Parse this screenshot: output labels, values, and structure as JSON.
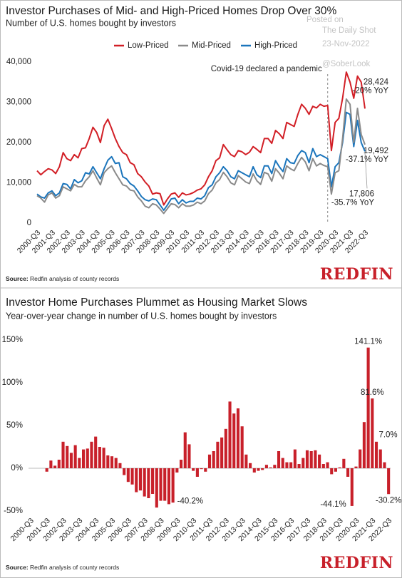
{
  "watermark": {
    "line1": "Posted on",
    "line2": "The Daily Shot",
    "line3": "23-Nov-2022",
    "line4": "@SoberLook"
  },
  "chart_data": [
    {
      "type": "line",
      "title": "Investor Purchases of Mid- and High-Priced Homes Drop Over 30%",
      "subtitle": "Number of U.S. homes bought by investors",
      "source_label": "Source:",
      "source": "Redfin analysis of county records",
      "logo": "REDFIN",
      "categories": [
        "2000-Q3",
        null,
        null,
        null,
        "2001-Q3",
        null,
        null,
        null,
        "2002-Q3",
        null,
        null,
        null,
        "2003-Q3",
        null,
        null,
        null,
        "2004-Q3",
        null,
        null,
        null,
        "2005-Q3",
        null,
        null,
        null,
        "2006-Q3",
        null,
        null,
        null,
        "2007-Q3",
        null,
        null,
        null,
        "2008-Q3",
        null,
        null,
        null,
        "2009-Q3",
        null,
        null,
        null,
        "2010-Q3",
        null,
        null,
        null,
        "2011-Q3",
        null,
        null,
        null,
        "2012-Q3",
        null,
        null,
        null,
        "2013-Q3",
        null,
        null,
        null,
        "2014-Q3",
        null,
        null,
        null,
        "2015-Q3",
        null,
        null,
        null,
        "2016-Q3",
        null,
        null,
        null,
        "2017-Q3",
        null,
        null,
        null,
        "2018-Q3",
        null,
        null,
        null,
        "2019-Q3",
        null,
        null,
        null,
        "2020-Q3",
        null,
        null,
        null,
        "2021-Q3",
        null,
        null,
        null,
        "2022-Q3"
      ],
      "series": [
        {
          "name": "Low-Priced",
          "color": "#d21f26",
          "values": [
            13000,
            12000,
            12800,
            13500,
            13200,
            12300,
            14000,
            17500,
            16000,
            15500,
            17000,
            16200,
            18500,
            18700,
            21000,
            23800,
            22500,
            20000,
            24200,
            25800,
            23500,
            21000,
            19000,
            17500,
            17000,
            15000,
            14500,
            12300,
            11500,
            10200,
            9200,
            7200,
            7500,
            7300,
            4500,
            6000,
            7200,
            7500,
            6400,
            7500,
            7000,
            7200,
            7600,
            8200,
            8500,
            9500,
            11500,
            13000,
            15500,
            16200,
            19500,
            18200,
            17000,
            16500,
            18000,
            17700,
            17000,
            17600,
            19000,
            18300,
            17500,
            21000,
            21000,
            19800,
            23000,
            22200,
            21000,
            25000,
            24500,
            24000,
            27000,
            29500,
            28500,
            27000,
            29000,
            28600,
            29500,
            29000,
            29200,
            18000,
            25000,
            26000,
            31000,
            37500,
            35000,
            31000,
            36500,
            35000,
            28424
          ],
          "value_labels": [
            null,
            null,
            null,
            null,
            null,
            null,
            null,
            null,
            null,
            null,
            null,
            null,
            null,
            null,
            null,
            null,
            null,
            null,
            null,
            null,
            null,
            null,
            null,
            null,
            null,
            null,
            null,
            null,
            null,
            null,
            null,
            null,
            null,
            null,
            null,
            null,
            null,
            null,
            null,
            null,
            null,
            null,
            null,
            null,
            null,
            null,
            null,
            null,
            null,
            null,
            null,
            null,
            null,
            null,
            null,
            null,
            null,
            null,
            null,
            null,
            null,
            null,
            null,
            null,
            null,
            null,
            null,
            null,
            null,
            null,
            null,
            null,
            null,
            null,
            null,
            null,
            null,
            null,
            null,
            null,
            null,
            null,
            null,
            null,
            null,
            null,
            null,
            null,
            "28,424"
          ],
          "note": "-20% YoY"
        },
        {
          "name": "Mid-Priced",
          "color": "#8a8a8a",
          "values": [
            6800,
            6200,
            5200,
            7000,
            7500,
            6200,
            6800,
            9000,
            8500,
            8000,
            9600,
            9000,
            9000,
            10500,
            11500,
            13000,
            11200,
            9500,
            12500,
            13500,
            14200,
            12500,
            11000,
            9500,
            9200,
            8200,
            8000,
            6500,
            5500,
            4200,
            3800,
            4800,
            4500,
            3500,
            2400,
            3600,
            4800,
            4600,
            3800,
            4800,
            4200,
            4200,
            4500,
            5200,
            4800,
            5500,
            7300,
            8200,
            10000,
            10800,
            12600,
            11500,
            10000,
            9500,
            11800,
            11000,
            10200,
            9800,
            12200,
            10500,
            9600,
            12600,
            12200,
            10400,
            13500,
            12400,
            11000,
            14200,
            13500,
            13000,
            14800,
            16300,
            15200,
            13000,
            16000,
            14200,
            14800,
            14300,
            14000,
            7200,
            12500,
            13000,
            21000,
            30800,
            29500,
            20000,
            28500,
            22000,
            19492
          ],
          "value_labels": [
            null,
            null,
            null,
            null,
            null,
            null,
            null,
            null,
            null,
            null,
            null,
            null,
            null,
            null,
            null,
            null,
            null,
            null,
            null,
            null,
            null,
            null,
            null,
            null,
            null,
            null,
            null,
            null,
            null,
            null,
            null,
            null,
            null,
            null,
            null,
            null,
            null,
            null,
            null,
            null,
            null,
            null,
            null,
            null,
            null,
            null,
            null,
            null,
            null,
            null,
            null,
            null,
            null,
            null,
            null,
            null,
            null,
            null,
            null,
            null,
            null,
            null,
            null,
            null,
            null,
            null,
            null,
            null,
            null,
            null,
            null,
            null,
            null,
            null,
            null,
            null,
            null,
            null,
            null,
            null,
            null,
            null,
            null,
            null,
            null,
            null,
            null,
            null,
            "19,492"
          ],
          "note": "-37.1% YoY"
        },
        {
          "name": "High-Priced",
          "color": "#1b75bc",
          "values": [
            7200,
            6500,
            6200,
            7500,
            8000,
            6800,
            7500,
            9800,
            9600,
            8500,
            10800,
            10000,
            10500,
            12500,
            12200,
            14000,
            12500,
            11000,
            13500,
            15600,
            16500,
            14800,
            15000,
            11500,
            11000,
            9800,
            9200,
            8000,
            6600,
            5800,
            5500,
            6000,
            5800,
            4500,
            3200,
            4500,
            6000,
            6200,
            4800,
            5800,
            5000,
            5400,
            5400,
            6200,
            6000,
            6800,
            8800,
            9500,
            11500,
            12500,
            14000,
            13000,
            11500,
            11000,
            13000,
            12500,
            12000,
            11500,
            14000,
            12000,
            11300,
            14200,
            14200,
            12300,
            15500,
            14000,
            12800,
            16000,
            15000,
            14800,
            16800,
            18000,
            17500,
            15000,
            18500,
            16500,
            17000,
            16500,
            16000,
            9000,
            14000,
            15000,
            20000,
            27500,
            27000,
            19000,
            25500,
            20000,
            17806
          ],
          "value_labels": [
            null,
            null,
            null,
            null,
            null,
            null,
            null,
            null,
            null,
            null,
            null,
            null,
            null,
            null,
            null,
            null,
            null,
            null,
            null,
            null,
            null,
            null,
            null,
            null,
            null,
            null,
            null,
            null,
            null,
            null,
            null,
            null,
            null,
            null,
            null,
            null,
            null,
            null,
            null,
            null,
            null,
            null,
            null,
            null,
            null,
            null,
            null,
            null,
            null,
            null,
            null,
            null,
            null,
            null,
            null,
            null,
            null,
            null,
            null,
            null,
            null,
            null,
            null,
            null,
            null,
            null,
            null,
            null,
            null,
            null,
            null,
            null,
            null,
            null,
            null,
            null,
            null,
            null,
            null,
            null,
            null,
            null,
            null,
            null,
            null,
            null,
            null,
            null,
            "17,806"
          ],
          "note": "-35.7% YoY"
        }
      ],
      "annotation": {
        "text": "Covid-19 declared a pandemic",
        "category_index": 78
      },
      "ylim": [
        0,
        40000
      ],
      "yticks": [
        0,
        {
          "value": 10000,
          "label": "10,000"
        },
        {
          "value": 20000,
          "label": "20,000"
        },
        {
          "value": 30000,
          "label": "30,000"
        },
        {
          "value": 40000,
          "label": "40,000"
        }
      ],
      "legend": "top"
    },
    {
      "type": "bar",
      "title": "Investor Home Purchases Plummet as Housing Market Slows",
      "subtitle": "Year-over-year change in number of U.S. homes bought by investors",
      "source_label": "Source:",
      "source": "Redfin analysis of county records",
      "logo": "REDFIN",
      "categories": [
        "2000-Q3",
        null,
        null,
        null,
        "2001-Q3",
        null,
        null,
        null,
        "2002-Q3",
        null,
        null,
        null,
        "2003-Q3",
        null,
        null,
        null,
        "2004-Q3",
        null,
        null,
        null,
        "2005-Q3",
        null,
        null,
        null,
        "2006-Q3",
        null,
        null,
        null,
        "2007-Q3",
        null,
        null,
        null,
        "2008-Q3",
        null,
        null,
        null,
        "2009-Q3",
        null,
        null,
        null,
        "2010-Q3",
        null,
        null,
        null,
        "2011-Q3",
        null,
        null,
        null,
        "2012-Q3",
        null,
        null,
        null,
        "2013-Q3",
        null,
        null,
        null,
        "2014-Q3",
        null,
        null,
        null,
        "2015-Q3",
        null,
        null,
        null,
        "2016-Q3",
        null,
        null,
        null,
        "2017-Q3",
        null,
        null,
        null,
        "2018-Q3",
        null,
        null,
        null,
        "2019-Q3",
        null,
        null,
        null,
        "2020-Q3",
        null,
        null,
        null,
        "2021-Q3",
        null,
        null,
        null,
        "2022-Q3"
      ],
      "values": [
        null,
        null,
        null,
        null,
        -4,
        9,
        3,
        10,
        31,
        26,
        18,
        27,
        12,
        22,
        23,
        31,
        37,
        25,
        24,
        15,
        14,
        12,
        6,
        -8,
        -16,
        -19,
        -28,
        -26,
        -33,
        -35,
        -30,
        -46,
        -38,
        -38,
        -42,
        -40.2,
        -5,
        10,
        42,
        28,
        -3,
        -10,
        -1,
        -4,
        16,
        20,
        31,
        36,
        46,
        78,
        64,
        70,
        49,
        16,
        6,
        -5,
        -3,
        -2,
        4,
        1,
        4,
        20,
        12,
        7,
        7,
        22,
        5,
        12,
        21,
        20,
        21,
        16,
        5,
        7,
        -7,
        -4,
        1,
        11,
        -10,
        -44.1,
        2,
        22,
        54,
        141.1,
        81.6,
        31,
        22,
        7.0,
        -30.2
      ],
      "value_labels": [
        null,
        null,
        null,
        null,
        null,
        null,
        null,
        null,
        null,
        null,
        null,
        null,
        null,
        null,
        null,
        null,
        null,
        null,
        null,
        null,
        null,
        null,
        null,
        null,
        null,
        null,
        null,
        null,
        null,
        null,
        null,
        null,
        null,
        null,
        null,
        "-40.2%",
        null,
        null,
        null,
        null,
        null,
        null,
        null,
        null,
        null,
        null,
        null,
        null,
        null,
        null,
        null,
        null,
        null,
        null,
        null,
        null,
        null,
        null,
        null,
        null,
        null,
        null,
        null,
        null,
        null,
        null,
        null,
        null,
        null,
        null,
        null,
        null,
        null,
        null,
        null,
        null,
        null,
        null,
        null,
        "-44.1%",
        null,
        null,
        null,
        "141.1%",
        "81.6%",
        null,
        null,
        "7.0%",
        "-30.2%"
      ],
      "color": "#c8202a",
      "ylim": [
        -50,
        150
      ],
      "yticks": [
        {
          "value": -50,
          "label": "-50%"
        },
        {
          "value": 0,
          "label": "0%"
        },
        {
          "value": 50,
          "label": "50%"
        },
        {
          "value": 100,
          "label": "100%"
        },
        {
          "value": 150,
          "label": "150%"
        }
      ]
    }
  ]
}
